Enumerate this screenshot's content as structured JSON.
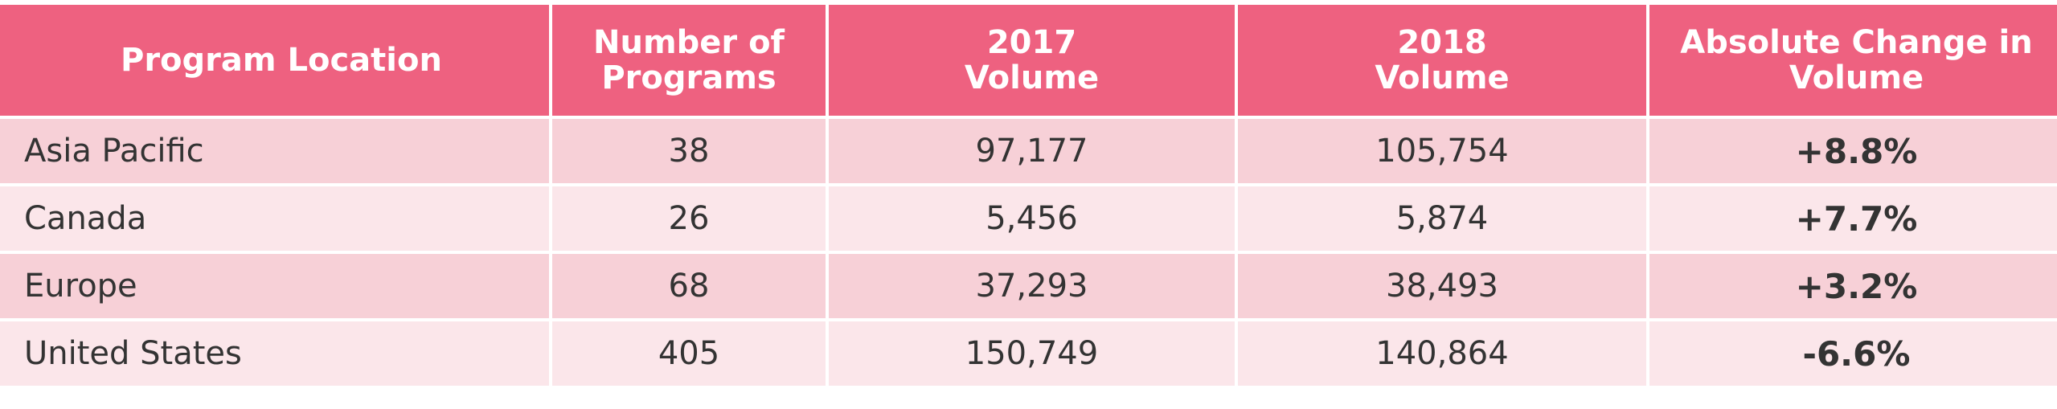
{
  "table": {
    "headers": [
      "Program Location",
      "Number of\nPrograms",
      "2017\nVolume",
      "2018\nVolume",
      "Absolute Change in\nVolume"
    ],
    "rows": [
      [
        "Asia Pacific",
        "38",
        "97,177",
        "105,754",
        "+8.8%"
      ],
      [
        "Canada",
        "26",
        "5,456",
        "5,874",
        "+7.7%"
      ],
      [
        "Europe",
        "68",
        "37,293",
        "38,493",
        "+3.2%"
      ],
      [
        "United States",
        "405",
        "150,749",
        "140,864",
        "-6.6%"
      ]
    ]
  }
}
